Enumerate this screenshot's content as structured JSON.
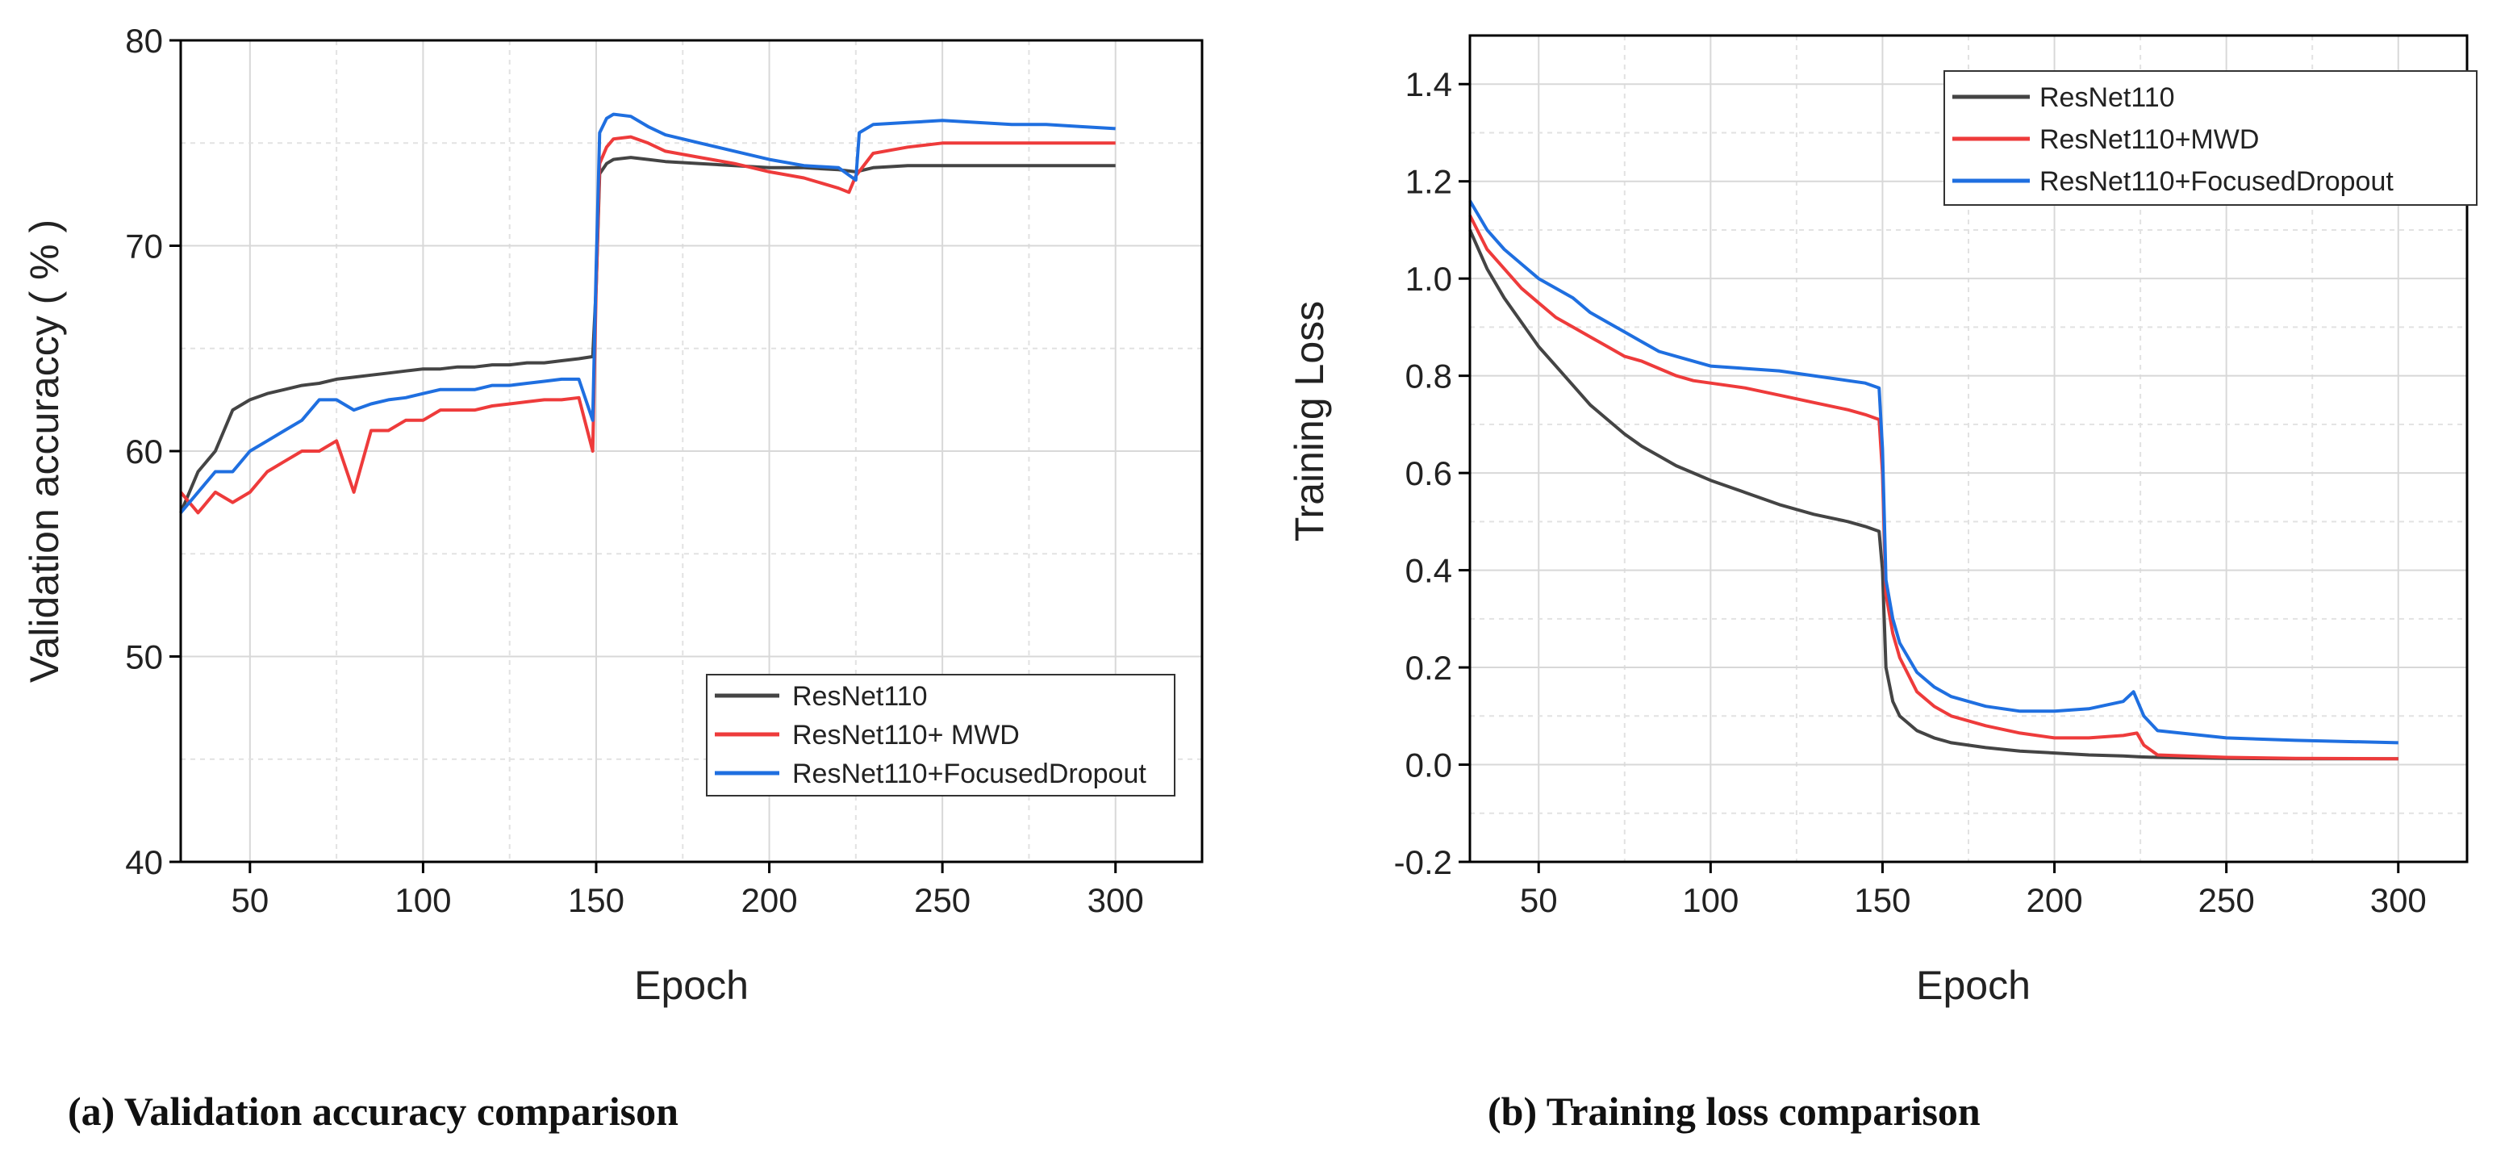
{
  "chart_data": [
    {
      "type": "line",
      "caption": "(a) Validation accuracy comparison",
      "xlabel": "Epoch",
      "ylabel": "Validation accuraccy ( % )",
      "xlim": [
        30,
        325
      ],
      "ylim": [
        40,
        80
      ],
      "xticks": [
        50,
        100,
        150,
        200,
        250,
        300
      ],
      "yticks": [
        40,
        50,
        60,
        70,
        80
      ],
      "grid": true,
      "legend_position": "bottom-right",
      "series": [
        {
          "name": "ResNet110",
          "color": "#444444",
          "x": [
            30,
            35,
            40,
            45,
            50,
            55,
            60,
            65,
            70,
            75,
            80,
            85,
            90,
            95,
            100,
            105,
            110,
            115,
            120,
            125,
            130,
            135,
            140,
            145,
            149,
            150,
            151,
            153,
            155,
            160,
            165,
            170,
            180,
            190,
            200,
            210,
            220,
            225,
            230,
            240,
            250,
            260,
            270,
            280,
            290,
            300
          ],
          "y": [
            57,
            59,
            60,
            62,
            62.5,
            62.8,
            63,
            63.2,
            63.3,
            63.5,
            63.6,
            63.7,
            63.8,
            63.9,
            64,
            64,
            64.1,
            64.1,
            64.2,
            64.2,
            64.3,
            64.3,
            64.4,
            64.5,
            64.6,
            68,
            73.5,
            74,
            74.2,
            74.3,
            74.2,
            74.1,
            74,
            73.9,
            73.8,
            73.8,
            73.7,
            73.6,
            73.8,
            73.9,
            73.9,
            73.9,
            73.9,
            73.9,
            73.9,
            73.9
          ]
        },
        {
          "name": "ResNet110+ MWD",
          "color": "#ee3b3b",
          "x": [
            30,
            35,
            40,
            45,
            50,
            55,
            60,
            65,
            70,
            75,
            80,
            85,
            90,
            95,
            100,
            105,
            110,
            115,
            120,
            125,
            130,
            135,
            140,
            145,
            149,
            150,
            151,
            153,
            155,
            160,
            165,
            170,
            180,
            190,
            200,
            210,
            220,
            223,
            225,
            230,
            240,
            250,
            260,
            270,
            280,
            290,
            300
          ],
          "y": [
            58,
            57,
            58,
            57.5,
            58,
            59,
            59.5,
            60,
            60,
            60.5,
            58,
            61,
            61,
            61.5,
            61.5,
            62,
            62,
            62,
            62.2,
            62.3,
            62.4,
            62.5,
            62.5,
            62.6,
            60,
            68,
            74,
            74.8,
            75.2,
            75.3,
            75,
            74.6,
            74.3,
            74,
            73.6,
            73.3,
            72.8,
            72.6,
            73.4,
            74.5,
            74.8,
            75,
            75,
            75,
            75,
            75,
            75
          ]
        },
        {
          "name": "ResNet110+FocusedDropout",
          "color": "#1f6fe0",
          "x": [
            30,
            35,
            40,
            45,
            50,
            55,
            60,
            65,
            70,
            75,
            80,
            85,
            90,
            95,
            100,
            105,
            110,
            115,
            120,
            125,
            130,
            135,
            140,
            145,
            149,
            150,
            151,
            153,
            155,
            160,
            165,
            170,
            180,
            190,
            200,
            210,
            220,
            225,
            226,
            230,
            240,
            250,
            260,
            270,
            280,
            290,
            300
          ],
          "y": [
            57,
            58,
            59,
            59,
            60,
            60.5,
            61,
            61.5,
            62.5,
            62.5,
            62,
            62.3,
            62.5,
            62.6,
            62.8,
            63,
            63,
            63,
            63.2,
            63.2,
            63.3,
            63.4,
            63.5,
            63.5,
            61.5,
            69,
            75.5,
            76.2,
            76.4,
            76.3,
            75.8,
            75.4,
            75,
            74.6,
            74.2,
            73.9,
            73.8,
            73.2,
            75.5,
            75.9,
            76,
            76.1,
            76,
            75.9,
            75.9,
            75.8,
            75.7
          ]
        }
      ]
    },
    {
      "type": "line",
      "caption": "(b) Training loss comparison",
      "xlabel": "Epoch",
      "ylabel": "Training Loss",
      "xlim": [
        30,
        320
      ],
      "ylim": [
        -0.2,
        1.5
      ],
      "xticks": [
        50,
        100,
        150,
        200,
        250,
        300
      ],
      "yticks": [
        -0.2,
        0.0,
        0.2,
        0.4,
        0.6,
        0.8,
        1.0,
        1.2,
        1.4
      ],
      "grid": true,
      "legend_position": "top-right",
      "series": [
        {
          "name": "ResNet110",
          "color": "#444444",
          "x": [
            30,
            35,
            40,
            45,
            50,
            55,
            60,
            65,
            70,
            75,
            80,
            85,
            90,
            95,
            100,
            110,
            120,
            130,
            140,
            145,
            149,
            150,
            151,
            153,
            155,
            160,
            165,
            170,
            180,
            190,
            200,
            210,
            220,
            225,
            230,
            250,
            270,
            300
          ],
          "y": [
            1.1,
            1.02,
            0.96,
            0.91,
            0.86,
            0.82,
            0.78,
            0.74,
            0.71,
            0.68,
            0.655,
            0.635,
            0.615,
            0.6,
            0.585,
            0.56,
            0.535,
            0.515,
            0.5,
            0.49,
            0.48,
            0.4,
            0.2,
            0.13,
            0.1,
            0.07,
            0.055,
            0.045,
            0.035,
            0.028,
            0.024,
            0.02,
            0.018,
            0.016,
            0.015,
            0.013,
            0.012,
            0.012
          ]
        },
        {
          "name": "ResNet110+MWD",
          "color": "#ee3b3b",
          "x": [
            30,
            35,
            40,
            45,
            50,
            55,
            60,
            65,
            70,
            75,
            80,
            85,
            90,
            95,
            100,
            110,
            120,
            130,
            140,
            145,
            149,
            150,
            151,
            153,
            155,
            160,
            165,
            170,
            180,
            190,
            200,
            210,
            220,
            224,
            226,
            230,
            250,
            270,
            300
          ],
          "y": [
            1.13,
            1.06,
            1.02,
            0.98,
            0.95,
            0.92,
            0.9,
            0.88,
            0.86,
            0.84,
            0.83,
            0.815,
            0.8,
            0.79,
            0.785,
            0.775,
            0.76,
            0.745,
            0.73,
            0.72,
            0.71,
            0.6,
            0.35,
            0.27,
            0.22,
            0.15,
            0.12,
            0.1,
            0.08,
            0.065,
            0.055,
            0.055,
            0.06,
            0.065,
            0.04,
            0.02,
            0.015,
            0.013,
            0.012
          ]
        },
        {
          "name": "ResNet110+FocusedDropout",
          "color": "#1f6fe0",
          "x": [
            30,
            35,
            40,
            45,
            50,
            55,
            60,
            65,
            70,
            75,
            80,
            85,
            90,
            95,
            100,
            110,
            120,
            130,
            140,
            145,
            149,
            150,
            151,
            153,
            155,
            160,
            165,
            170,
            180,
            190,
            200,
            210,
            220,
            223,
            226,
            230,
            250,
            270,
            300
          ],
          "y": [
            1.16,
            1.1,
            1.06,
            1.03,
            1.0,
            0.98,
            0.96,
            0.93,
            0.91,
            0.89,
            0.87,
            0.85,
            0.84,
            0.83,
            0.82,
            0.815,
            0.81,
            0.8,
            0.79,
            0.785,
            0.775,
            0.65,
            0.38,
            0.3,
            0.25,
            0.19,
            0.16,
            0.14,
            0.12,
            0.11,
            0.11,
            0.115,
            0.13,
            0.15,
            0.1,
            0.07,
            0.055,
            0.05,
            0.045
          ]
        }
      ]
    }
  ]
}
